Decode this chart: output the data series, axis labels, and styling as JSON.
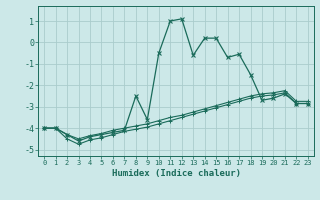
{
  "xlabel": "Humidex (Indice chaleur)",
  "background_color": "#cce8e8",
  "grid_color": "#aacccc",
  "line_color": "#1a6b5a",
  "xlim": [
    -0.5,
    23.5
  ],
  "ylim": [
    -5.3,
    1.7
  ],
  "xticks": [
    0,
    1,
    2,
    3,
    4,
    5,
    6,
    7,
    8,
    9,
    10,
    11,
    12,
    13,
    14,
    15,
    16,
    17,
    18,
    19,
    20,
    21,
    22,
    23
  ],
  "yticks": [
    -5,
    -4,
    -3,
    -2,
    -1,
    0,
    1
  ],
  "line1_x": [
    0,
    1,
    2,
    3,
    4,
    5,
    6,
    7,
    8,
    9,
    10,
    11,
    12,
    13,
    14,
    15,
    16,
    17,
    18,
    19,
    20,
    21,
    22,
    23
  ],
  "line1_y": [
    -4.0,
    -4.0,
    -4.3,
    -4.6,
    -4.4,
    -4.3,
    -4.2,
    -4.1,
    -2.5,
    -3.6,
    -0.5,
    1.0,
    1.1,
    -0.6,
    0.2,
    0.2,
    -0.7,
    -0.55,
    -1.5,
    -2.7,
    -2.6,
    -2.4,
    -2.85,
    -2.85
  ],
  "line2_x": [
    0,
    1,
    2,
    3,
    4,
    5,
    6,
    7,
    8,
    9,
    10,
    11,
    12,
    13,
    14,
    15,
    16,
    17,
    18,
    19,
    20,
    21,
    22,
    23
  ],
  "line2_y": [
    -4.0,
    -4.0,
    -4.3,
    -4.5,
    -4.35,
    -4.25,
    -4.1,
    -4.0,
    -3.9,
    -3.8,
    -3.65,
    -3.5,
    -3.4,
    -3.25,
    -3.1,
    -2.95,
    -2.8,
    -2.65,
    -2.5,
    -2.4,
    -2.35,
    -2.25,
    -2.75,
    -2.75
  ],
  "line3_x": [
    0,
    1,
    2,
    3,
    4,
    5,
    6,
    7,
    8,
    9,
    10,
    11,
    12,
    13,
    14,
    15,
    16,
    17,
    18,
    19,
    20,
    21,
    22,
    23
  ],
  "line3_y": [
    -4.0,
    -4.0,
    -4.5,
    -4.75,
    -4.55,
    -4.45,
    -4.3,
    -4.15,
    -4.05,
    -3.95,
    -3.8,
    -3.65,
    -3.5,
    -3.35,
    -3.2,
    -3.05,
    -2.9,
    -2.75,
    -2.6,
    -2.5,
    -2.45,
    -2.35,
    -2.85,
    -2.85
  ]
}
